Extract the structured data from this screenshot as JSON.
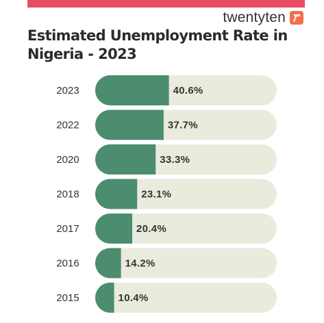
{
  "brand": {
    "name": "twentyten",
    "icon": "twentyten-logo-icon",
    "color": "#f26f4c"
  },
  "header": {
    "accent_color": "#e94b64"
  },
  "chart_data": {
    "type": "bar",
    "orientation": "horizontal",
    "title": "Estimated Unemployment Rate in Nigeria - 2023",
    "categories": [
      "2023",
      "2022",
      "2020",
      "2018",
      "2017",
      "2016",
      "2015"
    ],
    "values": [
      40.6,
      37.7,
      33.3,
      23.1,
      20.4,
      14.2,
      10.4
    ],
    "value_labels": [
      "40.6%",
      "37.7%",
      "33.3%",
      "23.1%",
      "20.4%",
      "14.2%",
      "10.4%"
    ],
    "xlim": [
      0,
      100
    ],
    "bar_color": "#4c8c6f",
    "track_color": "#e9ebdc",
    "grid": false,
    "legend": "none"
  }
}
